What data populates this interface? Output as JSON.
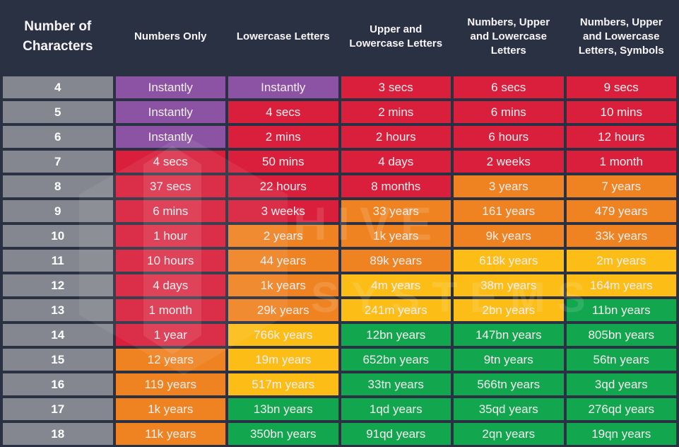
{
  "chart_data": {
    "type": "table",
    "columns": [
      "Number of Characters",
      "Numbers Only",
      "Lowercase Letters",
      "Upper and Lowercase Letters",
      "Numbers, Upper and Lowercase Letters",
      "Numbers, Upper and Lowercase Letters, Symbols"
    ],
    "row_label_column": "Number of Characters",
    "rows": [
      {
        "chars": "4",
        "cells": [
          {
            "text": "Instantly",
            "color": "purple"
          },
          {
            "text": "Instantly",
            "color": "purple"
          },
          {
            "text": "3 secs",
            "color": "red"
          },
          {
            "text": "6 secs",
            "color": "red"
          },
          {
            "text": "9 secs",
            "color": "red"
          }
        ]
      },
      {
        "chars": "5",
        "cells": [
          {
            "text": "Instantly",
            "color": "purple"
          },
          {
            "text": "4 secs",
            "color": "red"
          },
          {
            "text": "2 mins",
            "color": "red"
          },
          {
            "text": "6 mins",
            "color": "red"
          },
          {
            "text": "10 mins",
            "color": "red"
          }
        ]
      },
      {
        "chars": "6",
        "cells": [
          {
            "text": "Instantly",
            "color": "purple"
          },
          {
            "text": "2 mins",
            "color": "red"
          },
          {
            "text": "2 hours",
            "color": "red"
          },
          {
            "text": "6 hours",
            "color": "red"
          },
          {
            "text": "12 hours",
            "color": "red"
          }
        ]
      },
      {
        "chars": "7",
        "cells": [
          {
            "text": "4 secs",
            "color": "red"
          },
          {
            "text": "50 mins",
            "color": "red"
          },
          {
            "text": "4 days",
            "color": "red"
          },
          {
            "text": "2 weeks",
            "color": "red"
          },
          {
            "text": "1 month",
            "color": "red"
          }
        ]
      },
      {
        "chars": "8",
        "cells": [
          {
            "text": "37 secs",
            "color": "red"
          },
          {
            "text": "22 hours",
            "color": "red"
          },
          {
            "text": "8 months",
            "color": "red"
          },
          {
            "text": "3 years",
            "color": "orange"
          },
          {
            "text": "7 years",
            "color": "orange"
          }
        ]
      },
      {
        "chars": "9",
        "cells": [
          {
            "text": "6 mins",
            "color": "red"
          },
          {
            "text": "3 weeks",
            "color": "red"
          },
          {
            "text": "33 years",
            "color": "orange"
          },
          {
            "text": "161 years",
            "color": "orange"
          },
          {
            "text": "479 years",
            "color": "orange"
          }
        ]
      },
      {
        "chars": "10",
        "cells": [
          {
            "text": "1 hour",
            "color": "red"
          },
          {
            "text": "2 years",
            "color": "orange"
          },
          {
            "text": "1k years",
            "color": "orange"
          },
          {
            "text": "9k years",
            "color": "orange"
          },
          {
            "text": "33k years",
            "color": "orange"
          }
        ]
      },
      {
        "chars": "11",
        "cells": [
          {
            "text": "10 hours",
            "color": "red"
          },
          {
            "text": "44 years",
            "color": "orange"
          },
          {
            "text": "89k years",
            "color": "orange"
          },
          {
            "text": "618k years",
            "color": "yellow"
          },
          {
            "text": "2m years",
            "color": "yellow"
          }
        ]
      },
      {
        "chars": "12",
        "cells": [
          {
            "text": "4 days",
            "color": "red"
          },
          {
            "text": "1k years",
            "color": "orange"
          },
          {
            "text": "4m years",
            "color": "yellow"
          },
          {
            "text": "38m years",
            "color": "yellow"
          },
          {
            "text": "164m years",
            "color": "yellow"
          }
        ]
      },
      {
        "chars": "13",
        "cells": [
          {
            "text": "1 month",
            "color": "red"
          },
          {
            "text": "29k years",
            "color": "orange"
          },
          {
            "text": "241m years",
            "color": "yellow"
          },
          {
            "text": "2bn years",
            "color": "yellow"
          },
          {
            "text": "11bn years",
            "color": "green"
          }
        ]
      },
      {
        "chars": "14",
        "cells": [
          {
            "text": "1 year",
            "color": "red"
          },
          {
            "text": "766k years",
            "color": "yellow"
          },
          {
            "text": "12bn years",
            "color": "green"
          },
          {
            "text": "147bn years",
            "color": "green"
          },
          {
            "text": "805bn years",
            "color": "green"
          }
        ]
      },
      {
        "chars": "15",
        "cells": [
          {
            "text": "12 years",
            "color": "orange"
          },
          {
            "text": "19m years",
            "color": "yellow"
          },
          {
            "text": "652bn years",
            "color": "green"
          },
          {
            "text": "9tn years",
            "color": "green"
          },
          {
            "text": "56tn years",
            "color": "green"
          }
        ]
      },
      {
        "chars": "16",
        "cells": [
          {
            "text": "119 years",
            "color": "orange"
          },
          {
            "text": "517m years",
            "color": "yellow"
          },
          {
            "text": "33tn years",
            "color": "green"
          },
          {
            "text": "566tn years",
            "color": "green"
          },
          {
            "text": "3qd years",
            "color": "green"
          }
        ]
      },
      {
        "chars": "17",
        "cells": [
          {
            "text": "1k years",
            "color": "orange"
          },
          {
            "text": "13bn years",
            "color": "green"
          },
          {
            "text": "1qd years",
            "color": "green"
          },
          {
            "text": "35qd years",
            "color": "green"
          },
          {
            "text": "276qd years",
            "color": "green"
          }
        ]
      },
      {
        "chars": "18",
        "cells": [
          {
            "text": "11k years",
            "color": "orange"
          },
          {
            "text": "350bn years",
            "color": "green"
          },
          {
            "text": "91qd years",
            "color": "green"
          },
          {
            "text": "2qn years",
            "color": "green"
          },
          {
            "text": "19qn years",
            "color": "green"
          }
        ]
      }
    ],
    "legend_colors": {
      "purple": "#8C53A5",
      "red": "#D91F3B",
      "orange": "#EF8322",
      "yellow": "#FBBD16",
      "green": "#12A64E",
      "gray": "#84878F",
      "background": "#2A3142"
    }
  },
  "watermark": {
    "line1": "HIVE",
    "line2": "SYSTEMS",
    "icon": "hexagon-logo"
  }
}
